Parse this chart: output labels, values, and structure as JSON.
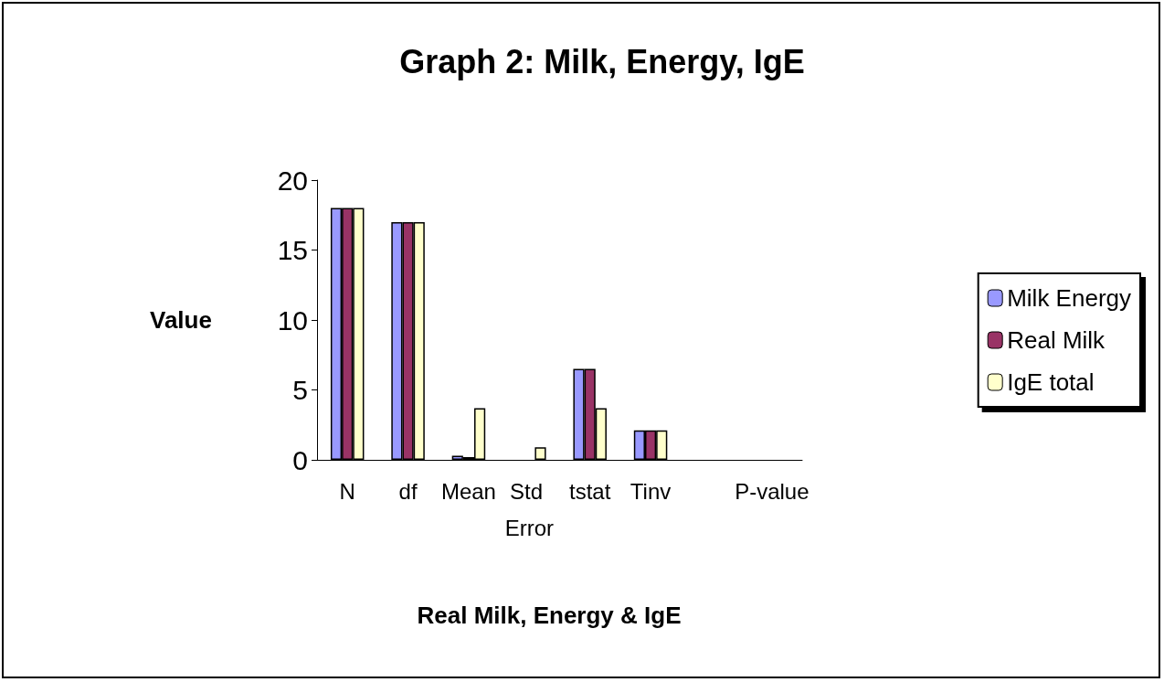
{
  "chart_data": {
    "type": "bar",
    "title": "Graph 2: Milk, Energy, IgE",
    "xlabel": "Real Milk, Energy & IgE",
    "ylabel": "Value",
    "categories": [
      "N",
      "df",
      "Mean",
      "Std Error",
      "tstat",
      "Tinv",
      null,
      "P-value"
    ],
    "series": [
      {
        "name": "Milk Energy",
        "color": "#9999ff",
        "values": [
          18,
          17,
          0.3,
          0,
          6.5,
          2.1,
          null,
          0
        ]
      },
      {
        "name": "Real Milk",
        "color": "#993366",
        "values": [
          18,
          17,
          0.2,
          0,
          6.5,
          2.1,
          null,
          0
        ]
      },
      {
        "name": "IgE total",
        "color": "#ffffcc",
        "values": [
          18,
          17,
          3.7,
          0.9,
          3.7,
          2.1,
          null,
          0
        ]
      }
    ],
    "ylim": [
      0,
      20
    ],
    "yticks": [
      0,
      5,
      10,
      15,
      20
    ],
    "grid": false,
    "legend": "right"
  }
}
